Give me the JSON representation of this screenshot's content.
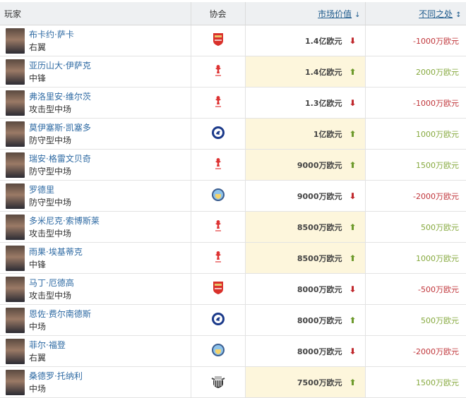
{
  "header": {
    "player": "玩家",
    "club": "协会",
    "market_value": "市场价值",
    "difference": "不同之处",
    "mv_sort_icon": "↓",
    "diff_sort_icon": "↕"
  },
  "colors": {
    "link": "#2e6aa3",
    "up": "#6d9a2b",
    "down": "#c0282d",
    "highlight": "#fdf6dc"
  },
  "rows": [
    {
      "name": "布卡约·萨卡",
      "position": "右翼",
      "club": "arsenal",
      "value": "1.4亿欧元",
      "trend": "down",
      "diff": "-1000万欧元",
      "highlighted": false
    },
    {
      "name": "亚历山大·伊萨克",
      "position": "中锋",
      "club": "liverpool",
      "value": "1.4亿欧元",
      "trend": "up",
      "diff": "2000万欧元",
      "highlighted": true
    },
    {
      "name": "弗洛里安·维尔茨",
      "position": "攻击型中场",
      "club": "liverpool",
      "value": "1.3亿欧元",
      "trend": "down",
      "diff": "-1000万欧元",
      "highlighted": false
    },
    {
      "name": "莫伊塞斯·凯塞多",
      "position": "防守型中场",
      "club": "chelsea",
      "value": "1亿欧元",
      "trend": "up",
      "diff": "1000万欧元",
      "highlighted": true
    },
    {
      "name": "瑞安·格雷文贝奇",
      "position": "防守型中场",
      "club": "liverpool",
      "value": "9000万欧元",
      "trend": "up",
      "diff": "1500万欧元",
      "highlighted": true
    },
    {
      "name": "罗德里",
      "position": "防守型中场",
      "club": "man-city",
      "value": "9000万欧元",
      "trend": "down",
      "diff": "-2000万欧元",
      "highlighted": false
    },
    {
      "name": "多米尼克·索博斯莱",
      "position": "攻击型中场",
      "club": "liverpool",
      "value": "8500万欧元",
      "trend": "up",
      "diff": "500万欧元",
      "highlighted": true
    },
    {
      "name": "雨果·埃基蒂克",
      "position": "中锋",
      "club": "liverpool",
      "value": "8500万欧元",
      "trend": "up",
      "diff": "1000万欧元",
      "highlighted": true
    },
    {
      "name": "马丁·厄德高",
      "position": "攻击型中场",
      "club": "arsenal",
      "value": "8000万欧元",
      "trend": "down",
      "diff": "-500万欧元",
      "highlighted": false
    },
    {
      "name": "恩佐·费尔南德斯",
      "position": "中场",
      "club": "chelsea",
      "value": "8000万欧元",
      "trend": "up",
      "diff": "500万欧元",
      "highlighted": false
    },
    {
      "name": "菲尔·福登",
      "position": "右翼",
      "club": "man-city",
      "value": "8000万欧元",
      "trend": "down",
      "diff": "-2000万欧元",
      "highlighted": false
    },
    {
      "name": "桑德罗·托纳利",
      "position": "中场",
      "club": "newcastle",
      "value": "7500万欧元",
      "trend": "up",
      "diff": "1500万欧元",
      "highlighted": true
    }
  ]
}
